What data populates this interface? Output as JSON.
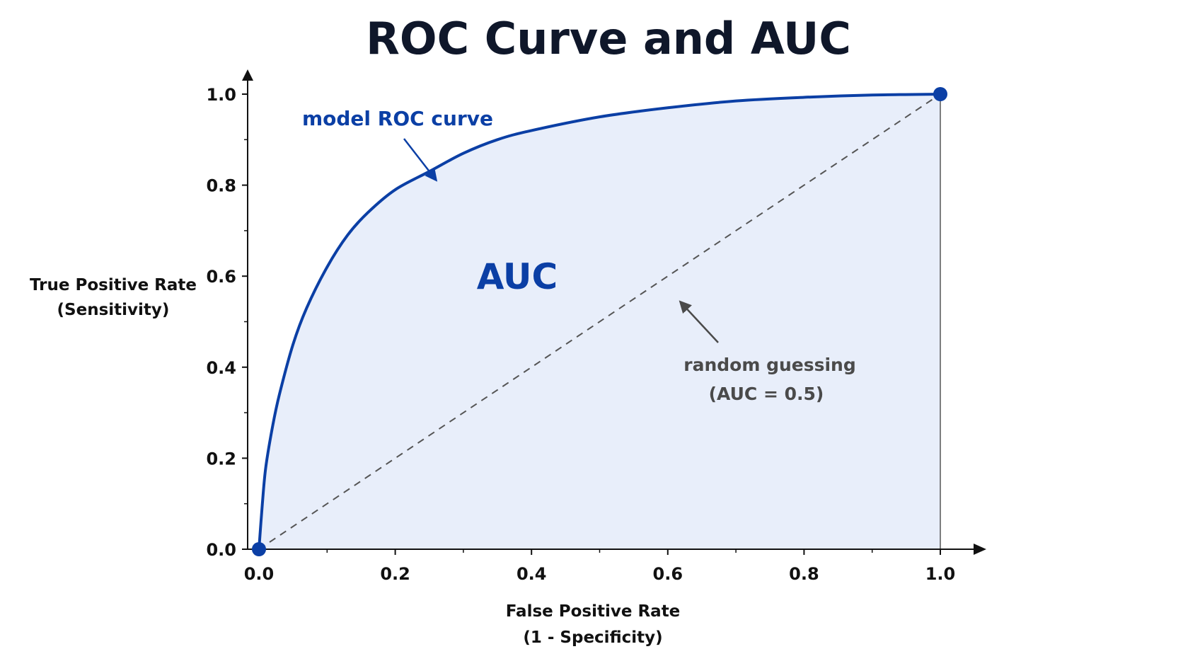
{
  "chart_data": {
    "type": "line",
    "title": "ROC Curve and AUC",
    "xlabel": "False Positive Rate",
    "xlabel_sub": "(1 - Specificity)",
    "ylabel": "True Positive Rate",
    "ylabel_sub": "(Sensitivity)",
    "xlim": [
      0,
      1
    ],
    "ylim": [
      0,
      1
    ],
    "x_ticks": [
      "0.0",
      "0.2",
      "0.4",
      "0.6",
      "0.8",
      "1.0"
    ],
    "y_ticks": [
      "0.0",
      "0.2",
      "0.4",
      "0.6",
      "0.8",
      "1.0"
    ],
    "grid": false,
    "series": [
      {
        "name": "model ROC curve",
        "x": [
          0,
          0.005,
          0.01,
          0.02,
          0.03,
          0.05,
          0.07,
          0.1,
          0.13,
          0.16,
          0.2,
          0.25,
          0.3,
          0.35,
          0.4,
          0.5,
          0.6,
          0.7,
          0.8,
          0.9,
          1.0
        ],
        "y": [
          0,
          0.1,
          0.18,
          0.27,
          0.34,
          0.45,
          0.53,
          0.62,
          0.69,
          0.74,
          0.79,
          0.83,
          0.87,
          0.9,
          0.92,
          0.95,
          0.97,
          0.985,
          0.993,
          0.998,
          1.0
        ]
      },
      {
        "name": "random guessing",
        "x": [
          0,
          1
        ],
        "y": [
          0,
          1
        ]
      }
    ],
    "annotations": {
      "curve_label": "model ROC curve",
      "area_label": "AUC",
      "diagonal_label_line1": "random guessing",
      "diagonal_label_line2": "(AUC = 0.5)"
    },
    "colors": {
      "curve": "#0b3fa5",
      "fill": "#e8eefa",
      "diagonal": "#555555",
      "text_dark": "#111111",
      "annotation_gray": "#4a4a4a"
    }
  }
}
